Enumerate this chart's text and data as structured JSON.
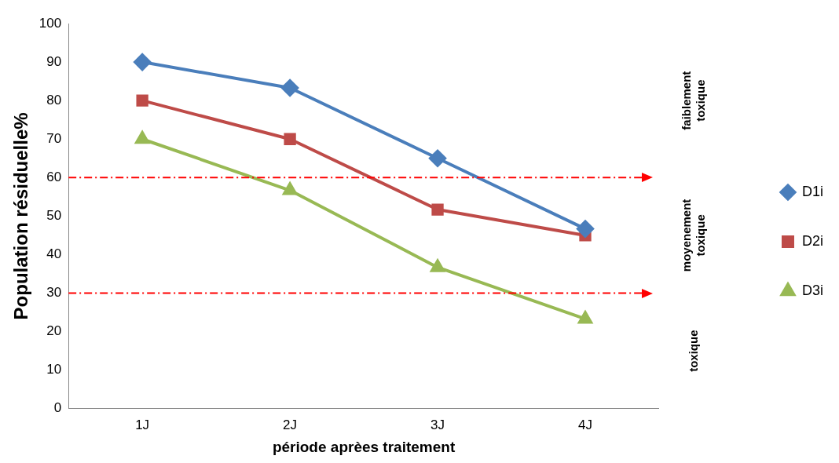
{
  "chart_data": {
    "type": "line",
    "xlabel": "période aprèes traitement",
    "ylabel": "Population résiduelle%",
    "categories": [
      "1J",
      "2J",
      "3J",
      "4J"
    ],
    "series": [
      {
        "name": "D1i",
        "color": "#4a7ebb",
        "marker": "diamond",
        "values": [
          90,
          83.3,
          65,
          46.7
        ]
      },
      {
        "name": "D2i",
        "color": "#be4b48",
        "marker": "square",
        "values": [
          80,
          70,
          51.7,
          45
        ]
      },
      {
        "name": "D3i",
        "color": "#98b954",
        "marker": "triangle",
        "values": [
          70,
          56.7,
          36.7,
          23.3
        ]
      }
    ],
    "ylim": [
      0,
      100
    ],
    "yticks": [
      0,
      10,
      20,
      30,
      40,
      50,
      60,
      70,
      80,
      90,
      100
    ],
    "grid": false,
    "legend": "right",
    "line_style": "solid",
    "ref_lines": [
      {
        "axis": "y",
        "value": 60,
        "color": "#ff0000",
        "line_style": "dashdot"
      },
      {
        "axis": "y",
        "value": 30,
        "color": "#ff0000",
        "line_style": "dashdot"
      }
    ],
    "annotations": [
      "faiblement toxique",
      "moyenement toxique",
      "toxique"
    ]
  }
}
